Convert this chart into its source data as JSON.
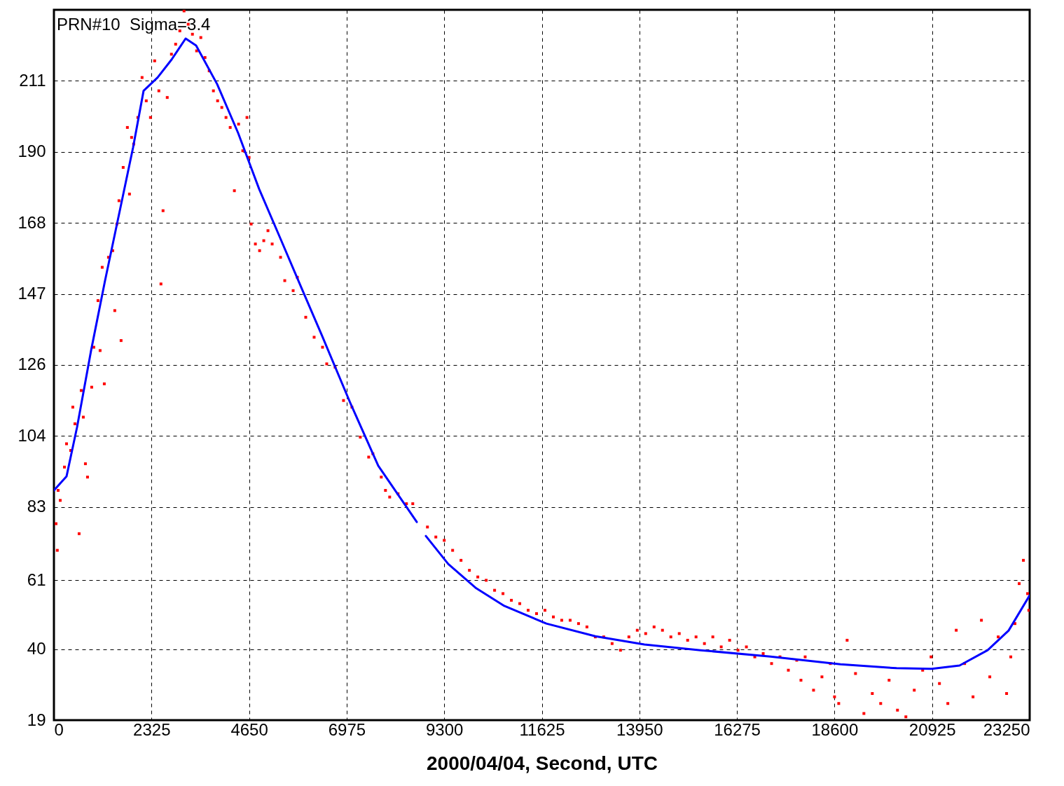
{
  "chart_data": {
    "type": "scatter",
    "xlabel": "2000/04/04, Second, UTC",
    "annotations": [
      "PRN#10  Sigma=3.4"
    ],
    "xlim": [
      0,
      23250
    ],
    "xticks": [
      0,
      2325,
      4650,
      6975,
      9300,
      11625,
      13950,
      16275,
      18600,
      20925,
      23250
    ],
    "ylim": [
      19,
      232.33
    ],
    "yticks": [
      19,
      {
        "value": 40.33,
        "label": "40"
      },
      61,
      83,
      {
        "value": 104.33,
        "label": "104"
      },
      {
        "value": 125.67,
        "label": "126"
      },
      147,
      {
        "value": 168.33,
        "label": "168"
      },
      {
        "value": 189.67,
        "label": "190"
      },
      211
    ],
    "grid": true,
    "series": [
      {
        "marker": "square",
        "color": "#ff0000",
        "x": [
          50,
          80,
          100,
          150,
          250,
          300,
          400,
          450,
          500,
          600,
          650,
          700,
          750,
          800,
          900,
          950,
          1050,
          1100,
          1150,
          1200,
          1300,
          1400,
          1450,
          1500,
          1550,
          1600,
          1650,
          1750,
          1800,
          1850,
          1900,
          2000,
          2100,
          2200,
          2300,
          2400,
          2500,
          2550,
          2600,
          2700,
          2800,
          2900,
          3000,
          3100,
          3200,
          3300,
          3400,
          3500,
          3600,
          3700,
          3800,
          3900,
          4000,
          4100,
          4200,
          4300,
          4400,
          4500,
          4600,
          4650,
          4700,
          4800,
          4900,
          5000,
          5100,
          5200,
          5400,
          5500,
          5700,
          5800,
          6000,
          6200,
          6400,
          6500,
          6700,
          6900,
          7100,
          7300,
          7500,
          7600,
          7800,
          7900,
          8000,
          8200,
          8400,
          8550,
          8900,
          9100,
          9300,
          9500,
          9700,
          9900,
          10100,
          10300,
          10500,
          10700,
          10900,
          11100,
          11300,
          11500,
          11700,
          11900,
          12100,
          12300,
          12500,
          12700,
          12900,
          13100,
          13300,
          13500,
          13700,
          13900,
          14100,
          14300,
          14500,
          14700,
          14900,
          15100,
          15300,
          15500,
          15700,
          15900,
          16100,
          16300,
          16500,
          16700,
          16900,
          17100,
          17300,
          17500,
          17700,
          17800,
          17900,
          18100,
          18300,
          18500,
          18600,
          18700,
          18900,
          19100,
          19300,
          19500,
          19700,
          19900,
          20100,
          20300,
          20500,
          20700,
          20900,
          21100,
          21300,
          21500,
          21700,
          21900,
          22100,
          22300,
          22500,
          22700,
          22800,
          22900,
          23000,
          23100,
          23200,
          23230
        ],
        "values": [
          78,
          70,
          88,
          85,
          95,
          102,
          100,
          113,
          108,
          75,
          118,
          110,
          96,
          92,
          119,
          131,
          145,
          130,
          155,
          120,
          158,
          160,
          142,
          168,
          175,
          133,
          185,
          197,
          177,
          194,
          192,
          200,
          212,
          205,
          200,
          217,
          208,
          150,
          172,
          206,
          219,
          222,
          226,
          232,
          228,
          225,
          220,
          224,
          218,
          214,
          208,
          205,
          203,
          200,
          197,
          178,
          198,
          190,
          200,
          188,
          168,
          162,
          160,
          163,
          166,
          162,
          158,
          151,
          148,
          152,
          140,
          134,
          131,
          126,
          125,
          115,
          113,
          104,
          98,
          99,
          92,
          88,
          86,
          87,
          84,
          84,
          77,
          74,
          73,
          70,
          67,
          64,
          62,
          61,
          58,
          57,
          55,
          54,
          52,
          51,
          52,
          50,
          49,
          49,
          48,
          47,
          44,
          44,
          42,
          40,
          44,
          46,
          45,
          47,
          46,
          44,
          45,
          43,
          44,
          42,
          44,
          41,
          43,
          40,
          41,
          38,
          39,
          36,
          38,
          34,
          37,
          31,
          38,
          28,
          32,
          36,
          26,
          24,
          43,
          33,
          21,
          27,
          24,
          31,
          22,
          20,
          28,
          34,
          38,
          30,
          24,
          46,
          36,
          26,
          49,
          32,
          44,
          27,
          38,
          48,
          60,
          67,
          57,
          52
        ]
      },
      {
        "type": "line",
        "color": "#0000ff",
        "x": [
          0,
          300,
          551,
          885,
          1218,
          1636,
          1886,
          2136,
          2470,
          2804,
          3138,
          3388,
          3889,
          4390,
          4890,
          5391,
          5892,
          6393,
          7060,
          7728,
          8646,
          8750,
          8862,
          9396,
          10064,
          10732,
          11733,
          12902,
          14070,
          15405,
          17074,
          18743,
          20078,
          20913,
          21580,
          22248,
          22748,
          23250
        ],
        "values": [
          88,
          92.2,
          107,
          130,
          151,
          176,
          191,
          208,
          212,
          217.4,
          223.7,
          221.6,
          210,
          195.3,
          178.5,
          163.8,
          149,
          134.3,
          114.3,
          95.4,
          78.5,
          null,
          74.3,
          65.9,
          58.6,
          53.3,
          48,
          44.2,
          41.7,
          40,
          38.1,
          35.8,
          34.6,
          34.4,
          35.4,
          40,
          45.9,
          56.5
        ]
      }
    ]
  }
}
